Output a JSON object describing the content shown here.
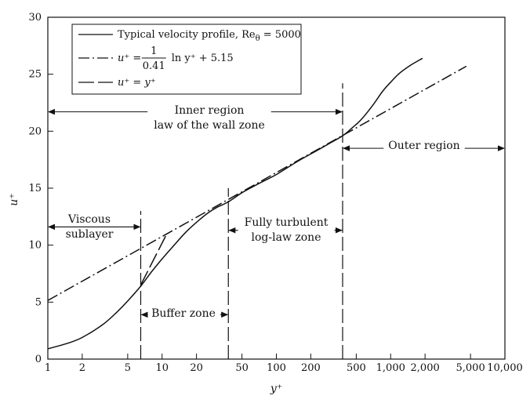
{
  "chart_data": {
    "type": "line",
    "xscale": "log",
    "xlim": [
      1,
      10000
    ],
    "ylim": [
      0,
      30
    ],
    "xlabel": "y⁺",
    "ylabel": "u⁺",
    "x_ticks": [
      {
        "value": 1,
        "label": "1"
      },
      {
        "value": 2,
        "label": "2"
      },
      {
        "value": 5,
        "label": "5"
      },
      {
        "value": 10,
        "label": "10"
      },
      {
        "value": 20,
        "label": "20"
      },
      {
        "value": 50,
        "label": "50"
      },
      {
        "value": 100,
        "label": "100"
      },
      {
        "value": 200,
        "label": "200"
      },
      {
        "value": 500,
        "label": "500"
      },
      {
        "value": 1000,
        "label": "1,000"
      },
      {
        "value": 2000,
        "label": "2,000"
      },
      {
        "value": 5000,
        "label": "5,000"
      },
      {
        "value": 10000,
        "label": "10,000"
      }
    ],
    "y_ticks": [
      {
        "value": 0,
        "label": "0"
      },
      {
        "value": 5,
        "label": "5"
      },
      {
        "value": 10,
        "label": "10"
      },
      {
        "value": 15,
        "label": "15"
      },
      {
        "value": 20,
        "label": "20"
      },
      {
        "value": 25,
        "label": "25"
      },
      {
        "value": 30,
        "label": "30"
      }
    ],
    "legend": {
      "position": "top-left",
      "entries": [
        {
          "text": "Typical velocity profile, Re",
          "subscript": "θ",
          "suffix": " = 5000",
          "style": "solid"
        },
        {
          "lhs": "u⁺ =",
          "frac_num": "1",
          "frac_den": "0.41",
          "rhs": "ln y⁺ + 5.15",
          "style": "dash-dot"
        },
        {
          "lhs": "u⁺ = y⁺",
          "style": "long-dash"
        }
      ]
    },
    "series": [
      {
        "style": "solid",
        "x": [
          1,
          1.5,
          2,
          3,
          4,
          5,
          6.5,
          8,
          10,
          13,
          16,
          20,
          25,
          30,
          38,
          50,
          70,
          100,
          150,
          200,
          300,
          380,
          450,
          550,
          700,
          850,
          1000,
          1200,
          1500,
          1900
        ],
        "y": [
          0.9,
          1.4,
          1.9,
          3.0,
          4.1,
          5.1,
          6.4,
          7.6,
          8.8,
          10.1,
          11.1,
          12.0,
          12.8,
          13.3,
          13.8,
          14.6,
          15.4,
          16.2,
          17.3,
          18.0,
          19.0,
          19.6,
          20.2,
          21.0,
          22.3,
          23.5,
          24.3,
          25.1,
          25.8,
          26.4
        ]
      },
      {
        "style": "dash-dot",
        "x": [
          1,
          4600
        ],
        "y": [
          5.15,
          25.7
        ]
      },
      {
        "style": "long-dash",
        "x": [
          6.5,
          11
        ],
        "y": [
          6.5,
          11
        ]
      }
    ],
    "region_lines": [
      {
        "x": 6.5,
        "y_top": 13
      },
      {
        "x": 38,
        "y_top": 15
      },
      {
        "x": 380,
        "y_top": 24.2
      }
    ],
    "annotations": [
      {
        "id": "inner",
        "lines": [
          "Inner region",
          "law of the wall zone"
        ],
        "arrow": {
          "y": 21.7,
          "x_from": 1,
          "x_to": 380
        }
      },
      {
        "id": "outer",
        "lines": [
          "Outer region"
        ],
        "arrow": {
          "y": 18.5,
          "x_from": 380,
          "x_to": 10000
        }
      },
      {
        "id": "viscous",
        "lines": [
          "Viscous",
          "sublayer"
        ],
        "arrow": {
          "y": 11.6,
          "x_from": 1,
          "x_to": 6.5
        }
      },
      {
        "id": "turbulent",
        "lines": [
          "Fully turbulent",
          "log-law zone"
        ],
        "arrow": {
          "y": 11.3,
          "x_from": 38,
          "x_to": 380
        }
      },
      {
        "id": "buffer",
        "lines": [
          "Buffer zone"
        ],
        "arrow": {
          "y": 3.9,
          "x_from": 6.5,
          "x_to": 38
        }
      }
    ]
  }
}
